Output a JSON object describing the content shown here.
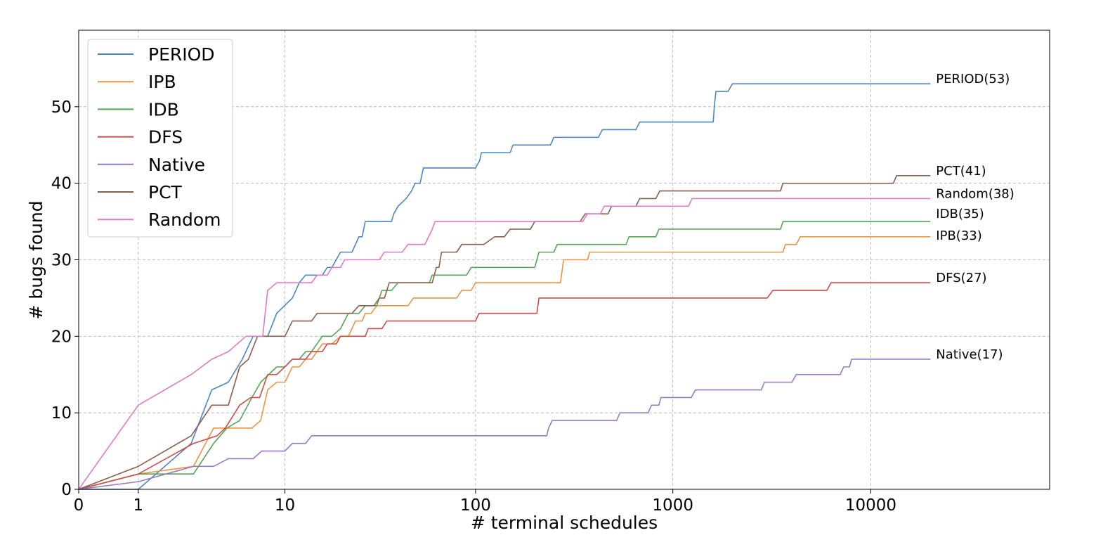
{
  "chart_data": {
    "type": "line",
    "title": "",
    "xlabel": "# terminal schedules",
    "ylabel": "# bugs found",
    "x_scale": "symlog",
    "xlim": [
      0,
      80000
    ],
    "ylim": [
      0,
      60
    ],
    "x_ticks": [
      0,
      1,
      10,
      100,
      1000,
      10000
    ],
    "x_tick_labels": [
      "0",
      "1",
      "10",
      "100",
      "1000",
      "10000"
    ],
    "y_ticks": [
      0,
      10,
      20,
      30,
      40,
      50
    ],
    "y_tick_labels": [
      "0",
      "10",
      "20",
      "30",
      "40",
      "50"
    ],
    "grid": true,
    "legend_position": "top-left",
    "series": [
      {
        "name": "PERIOD",
        "color": "#4a86c5",
        "end_label": "PERIOD(53)",
        "points": [
          [
            0,
            0
          ],
          [
            1,
            0
          ],
          [
            2.7,
            6
          ],
          [
            3.7,
            13
          ],
          [
            4.7,
            14
          ],
          [
            5.7,
            17
          ],
          [
            6.6,
            20
          ],
          [
            8,
            20
          ],
          [
            9,
            23
          ],
          [
            11,
            25
          ],
          [
            12,
            27
          ],
          [
            13,
            28
          ],
          [
            16,
            28
          ],
          [
            17,
            29
          ],
          [
            18,
            29
          ],
          [
            20,
            31
          ],
          [
            23,
            31
          ],
          [
            25,
            33
          ],
          [
            26,
            33
          ],
          [
            27,
            35
          ],
          [
            37,
            35
          ],
          [
            38,
            36
          ],
          [
            40,
            37
          ],
          [
            44,
            38
          ],
          [
            47,
            39
          ],
          [
            49,
            40
          ],
          [
            52,
            40
          ],
          [
            54,
            42
          ],
          [
            100,
            42
          ],
          [
            105,
            43
          ],
          [
            107,
            44
          ],
          [
            150,
            44
          ],
          [
            155,
            45
          ],
          [
            240,
            45
          ],
          [
            250,
            46
          ],
          [
            420,
            46
          ],
          [
            440,
            47
          ],
          [
            650,
            47
          ],
          [
            680,
            48
          ],
          [
            1600,
            48
          ],
          [
            1620,
            50
          ],
          [
            1650,
            52
          ],
          [
            1900,
            52
          ],
          [
            2000,
            53
          ],
          [
            20000,
            53
          ]
        ]
      },
      {
        "name": "IPB",
        "color": "#ef9241",
        "end_label": "IPB(33)",
        "points": [
          [
            0,
            0
          ],
          [
            1,
            2
          ],
          [
            2.8,
            3
          ],
          [
            3.8,
            8
          ],
          [
            4.5,
            8
          ],
          [
            6.5,
            8
          ],
          [
            7.3,
            9
          ],
          [
            8,
            13
          ],
          [
            9,
            14
          ],
          [
            10,
            14
          ],
          [
            11,
            16
          ],
          [
            12,
            16
          ],
          [
            13,
            17
          ],
          [
            14,
            17
          ],
          [
            16,
            19
          ],
          [
            18,
            19
          ],
          [
            20,
            20
          ],
          [
            22,
            20
          ],
          [
            24,
            22
          ],
          [
            26,
            22
          ],
          [
            27,
            23
          ],
          [
            29,
            23
          ],
          [
            31,
            24
          ],
          [
            45,
            24
          ],
          [
            48,
            25
          ],
          [
            80,
            25
          ],
          [
            85,
            26
          ],
          [
            95,
            26
          ],
          [
            100,
            27
          ],
          [
            270,
            27
          ],
          [
            280,
            30
          ],
          [
            370,
            30
          ],
          [
            380,
            31
          ],
          [
            3600,
            31
          ],
          [
            3700,
            32
          ],
          [
            4200,
            32
          ],
          [
            4400,
            33
          ],
          [
            20000,
            33
          ]
        ]
      },
      {
        "name": "IDB",
        "color": "#51a752",
        "end_label": "IDB(35)",
        "points": [
          [
            0,
            0
          ],
          [
            1,
            2
          ],
          [
            2.8,
            2
          ],
          [
            3.8,
            6
          ],
          [
            4.6,
            8
          ],
          [
            5.5,
            9
          ],
          [
            6.5,
            12
          ],
          [
            7.3,
            14
          ],
          [
            9,
            16
          ],
          [
            10,
            16
          ],
          [
            11,
            17
          ],
          [
            12,
            17
          ],
          [
            13,
            18
          ],
          [
            14,
            18
          ],
          [
            16,
            20
          ],
          [
            18,
            20
          ],
          [
            20,
            21
          ],
          [
            22,
            23
          ],
          [
            25,
            23
          ],
          [
            27,
            24
          ],
          [
            31,
            24
          ],
          [
            33,
            26
          ],
          [
            37,
            26
          ],
          [
            40,
            27
          ],
          [
            58,
            27
          ],
          [
            60,
            28
          ],
          [
            90,
            28
          ],
          [
            95,
            29
          ],
          [
            200,
            29
          ],
          [
            210,
            31
          ],
          [
            250,
            31
          ],
          [
            260,
            32
          ],
          [
            580,
            32
          ],
          [
            600,
            33
          ],
          [
            820,
            33
          ],
          [
            850,
            34
          ],
          [
            3500,
            34
          ],
          [
            3600,
            35
          ],
          [
            20000,
            35
          ]
        ]
      },
      {
        "name": "DFS",
        "color": "#d14a44",
        "end_label": "DFS(27)",
        "points": [
          [
            0,
            0
          ],
          [
            1,
            2
          ],
          [
            2.8,
            6
          ],
          [
            4,
            7
          ],
          [
            4.5,
            8
          ],
          [
            5.5,
            11
          ],
          [
            6.4,
            12
          ],
          [
            7.2,
            12
          ],
          [
            8,
            15
          ],
          [
            9,
            15
          ],
          [
            10,
            16
          ],
          [
            11,
            17
          ],
          [
            13,
            17
          ],
          [
            14,
            18
          ],
          [
            16,
            18
          ],
          [
            17,
            19
          ],
          [
            19,
            19
          ],
          [
            20,
            20
          ],
          [
            27,
            20
          ],
          [
            28,
            21
          ],
          [
            33,
            21
          ],
          [
            35,
            22
          ],
          [
            100,
            22
          ],
          [
            104,
            23
          ],
          [
            205,
            23
          ],
          [
            210,
            25
          ],
          [
            2000,
            25
          ],
          [
            3000,
            25
          ],
          [
            3200,
            26
          ],
          [
            6000,
            26
          ],
          [
            6300,
            27
          ],
          [
            20000,
            27
          ]
        ]
      },
      {
        "name": "Native",
        "color": "#9a79c4",
        "end_label": "Native(17)",
        "points": [
          [
            0,
            0
          ],
          [
            1,
            1
          ],
          [
            2.8,
            3
          ],
          [
            3.8,
            3
          ],
          [
            4.7,
            4
          ],
          [
            6.6,
            4
          ],
          [
            7.4,
            5
          ],
          [
            10,
            5
          ],
          [
            11,
            6
          ],
          [
            13,
            6
          ],
          [
            14,
            7
          ],
          [
            230,
            7
          ],
          [
            235,
            8
          ],
          [
            245,
            9
          ],
          [
            520,
            9
          ],
          [
            540,
            10
          ],
          [
            750,
            10
          ],
          [
            780,
            11
          ],
          [
            850,
            11
          ],
          [
            870,
            12
          ],
          [
            1240,
            12
          ],
          [
            1300,
            13
          ],
          [
            2800,
            13
          ],
          [
            2900,
            14
          ],
          [
            4000,
            14
          ],
          [
            4200,
            15
          ],
          [
            7000,
            15
          ],
          [
            7300,
            16
          ],
          [
            7800,
            16
          ],
          [
            8000,
            17
          ],
          [
            20000,
            17
          ]
        ]
      },
      {
        "name": "PCT",
        "color": "#8b5e4b",
        "end_label": "PCT(41)",
        "points": [
          [
            0,
            0
          ],
          [
            1,
            3
          ],
          [
            2.7,
            7
          ],
          [
            3.7,
            11
          ],
          [
            4.7,
            11
          ],
          [
            5.5,
            16
          ],
          [
            6.2,
            17
          ],
          [
            7,
            20
          ],
          [
            9.5,
            20
          ],
          [
            10,
            20
          ],
          [
            11,
            22
          ],
          [
            14,
            22
          ],
          [
            15,
            23
          ],
          [
            18,
            23
          ],
          [
            19,
            23
          ],
          [
            23,
            23
          ],
          [
            25,
            24
          ],
          [
            30,
            24
          ],
          [
            32,
            25
          ],
          [
            34,
            25
          ],
          [
            36,
            27
          ],
          [
            60,
            27
          ],
          [
            63,
            29
          ],
          [
            65,
            29
          ],
          [
            67,
            31
          ],
          [
            80,
            31
          ],
          [
            85,
            32
          ],
          [
            100,
            32
          ],
          [
            110,
            32
          ],
          [
            125,
            33
          ],
          [
            140,
            33
          ],
          [
            150,
            34
          ],
          [
            190,
            34
          ],
          [
            200,
            35
          ],
          [
            340,
            35
          ],
          [
            360,
            36
          ],
          [
            470,
            36
          ],
          [
            490,
            37
          ],
          [
            650,
            37
          ],
          [
            680,
            38
          ],
          [
            820,
            38
          ],
          [
            860,
            39
          ],
          [
            3500,
            39
          ],
          [
            3600,
            40
          ],
          [
            13000,
            40
          ],
          [
            13500,
            41
          ],
          [
            20000,
            41
          ]
        ]
      },
      {
        "name": "Random",
        "color": "#e17ac8",
        "end_label": "Random(38)",
        "points": [
          [
            0,
            0
          ],
          [
            1,
            11
          ],
          [
            2.7,
            15
          ],
          [
            3.7,
            17
          ],
          [
            4.7,
            18
          ],
          [
            6,
            20
          ],
          [
            7.5,
            20
          ],
          [
            8,
            26
          ],
          [
            9,
            27
          ],
          [
            14,
            27
          ],
          [
            15,
            28
          ],
          [
            17,
            28
          ],
          [
            18,
            29
          ],
          [
            20,
            29
          ],
          [
            21,
            30
          ],
          [
            32,
            30
          ],
          [
            34,
            31
          ],
          [
            42,
            31
          ],
          [
            45,
            32
          ],
          [
            55,
            32
          ],
          [
            60,
            34
          ],
          [
            62,
            35
          ],
          [
            150,
            35
          ],
          [
            350,
            35
          ],
          [
            370,
            36
          ],
          [
            430,
            36
          ],
          [
            450,
            37
          ],
          [
            1200,
            37
          ],
          [
            1250,
            38
          ],
          [
            20000,
            38
          ]
        ]
      }
    ]
  }
}
